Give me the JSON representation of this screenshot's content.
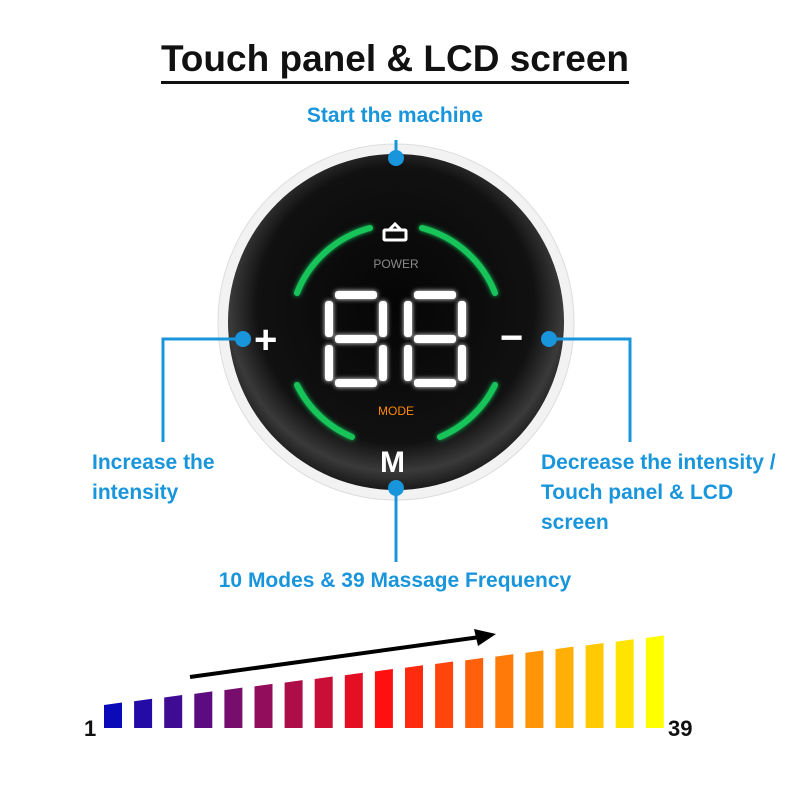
{
  "title": "Touch panel & LCD screen",
  "labels": {
    "top": "Start the machine",
    "left": "Increase the intensity",
    "right": "Decrease the intensity / Touch panel & LCD screen",
    "bottom": "10 Modes & 39 Massage Frequency"
  },
  "device": {
    "power_label": "POWER",
    "mode_label": "MODE",
    "display_value": "88",
    "plus": "+",
    "minus": "−",
    "m": "M",
    "icon": "power-lock-icon"
  },
  "scale": {
    "min_label": "1",
    "max_label": "39",
    "levels": 19,
    "start_color": "#0a0ab8",
    "mid_color": "#ff1010",
    "end_color": "#ffff00"
  },
  "colors": {
    "accent": "#1995dc",
    "ring": "#16c45a",
    "mode": "#ff8a00"
  }
}
